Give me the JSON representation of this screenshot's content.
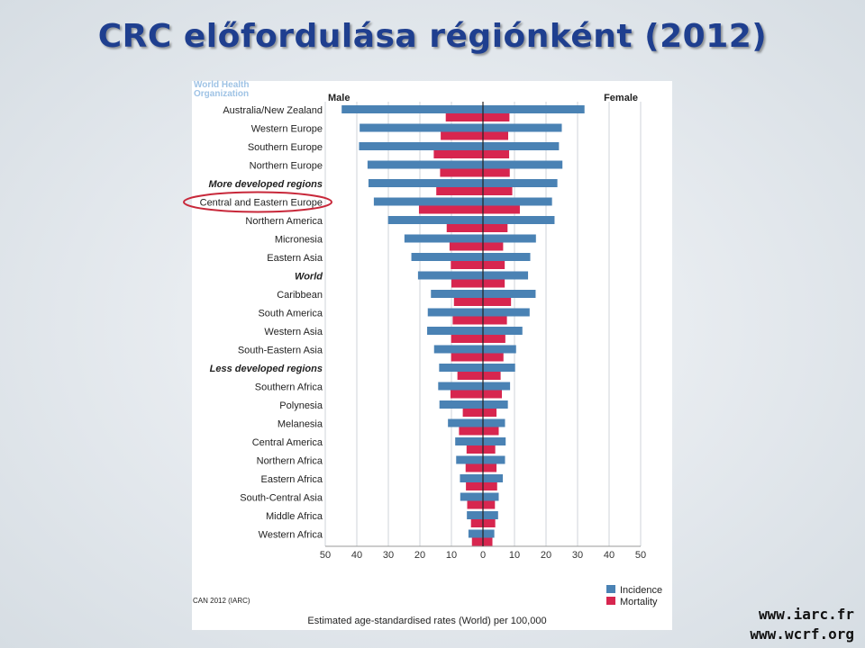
{
  "slide": {
    "title": "CRC előfordulása régiónként (2012)",
    "logo_text_line1": "World Health",
    "logo_text_line2": "Organization",
    "source_note": "CAN 2012 (IARC)",
    "links": [
      "www.iarc.fr",
      "www.wcrf.org"
    ]
  },
  "chart_data": {
    "type": "bar",
    "orientation": "horizontal population pyramid",
    "left_label": "Male",
    "right_label": "Female",
    "xlabel": "Estimated age-standardised rates (World) per 100,000",
    "xlim": [
      -50,
      50
    ],
    "x_ticks": [
      50,
      40,
      30,
      20,
      10,
      0,
      10,
      20,
      30,
      40,
      50
    ],
    "grid": true,
    "legend_position": "bottom-right",
    "highlighted_category": "Central and Eastern Europe",
    "categories": [
      {
        "label": "Australia/New Zealand",
        "bold": false
      },
      {
        "label": "Western Europe",
        "bold": false
      },
      {
        "label": "Southern Europe",
        "bold": false
      },
      {
        "label": "Northern Europe",
        "bold": false
      },
      {
        "label": "More developed regions",
        "bold": true
      },
      {
        "label": "Central and Eastern Europe",
        "bold": false
      },
      {
        "label": "Northern America",
        "bold": false
      },
      {
        "label": "Micronesia",
        "bold": false
      },
      {
        "label": "Eastern Asia",
        "bold": false
      },
      {
        "label": "World",
        "bold": true
      },
      {
        "label": "Caribbean",
        "bold": false
      },
      {
        "label": "South America",
        "bold": false
      },
      {
        "label": "Western Asia",
        "bold": false
      },
      {
        "label": "South-Eastern Asia",
        "bold": false
      },
      {
        "label": "Less developed regions",
        "bold": true
      },
      {
        "label": "Southern Africa",
        "bold": false
      },
      {
        "label": "Polynesia",
        "bold": false
      },
      {
        "label": "Melanesia",
        "bold": false
      },
      {
        "label": "Central America",
        "bold": false
      },
      {
        "label": "Northern Africa",
        "bold": false
      },
      {
        "label": "Eastern Africa",
        "bold": false
      },
      {
        "label": "South-Central Asia",
        "bold": false
      },
      {
        "label": "Middle Africa",
        "bold": false
      },
      {
        "label": "Western Africa",
        "bold": false
      }
    ],
    "series": [
      {
        "name": "Incidence",
        "color": "#4a82b4",
        "male": [
          44.8,
          39.1,
          39.3,
          36.6,
          36.3,
          34.6,
          30.1,
          24.9,
          22.7,
          20.6,
          16.5,
          17.5,
          17.7,
          15.5,
          13.9,
          14.2,
          13.8,
          11.1,
          8.8,
          8.5,
          7.3,
          7.2,
          5.1,
          4.6
        ],
        "female": [
          32.2,
          25.0,
          24.1,
          25.2,
          23.6,
          21.9,
          22.7,
          16.8,
          15.0,
          14.3,
          16.7,
          14.8,
          12.5,
          10.5,
          10.2,
          8.6,
          7.9,
          7.0,
          7.2,
          7.0,
          6.3,
          5.0,
          4.8,
          3.6
        ]
      },
      {
        "name": "Mortality",
        "color": "#d7264f",
        "male": [
          11.8,
          13.4,
          15.6,
          13.6,
          14.8,
          20.3,
          11.5,
          10.6,
          10.2,
          10.0,
          9.2,
          9.6,
          10.1,
          10.1,
          8.1,
          10.3,
          6.4,
          7.6,
          5.2,
          5.5,
          5.4,
          5.0,
          3.8,
          3.5
        ],
        "female": [
          8.4,
          8.0,
          8.3,
          8.5,
          9.3,
          11.7,
          7.8,
          6.4,
          6.9,
          6.9,
          8.9,
          7.6,
          7.1,
          6.5,
          5.6,
          6.0,
          4.3,
          5.0,
          3.9,
          4.3,
          4.5,
          3.8,
          3.9,
          3.0
        ]
      }
    ]
  }
}
